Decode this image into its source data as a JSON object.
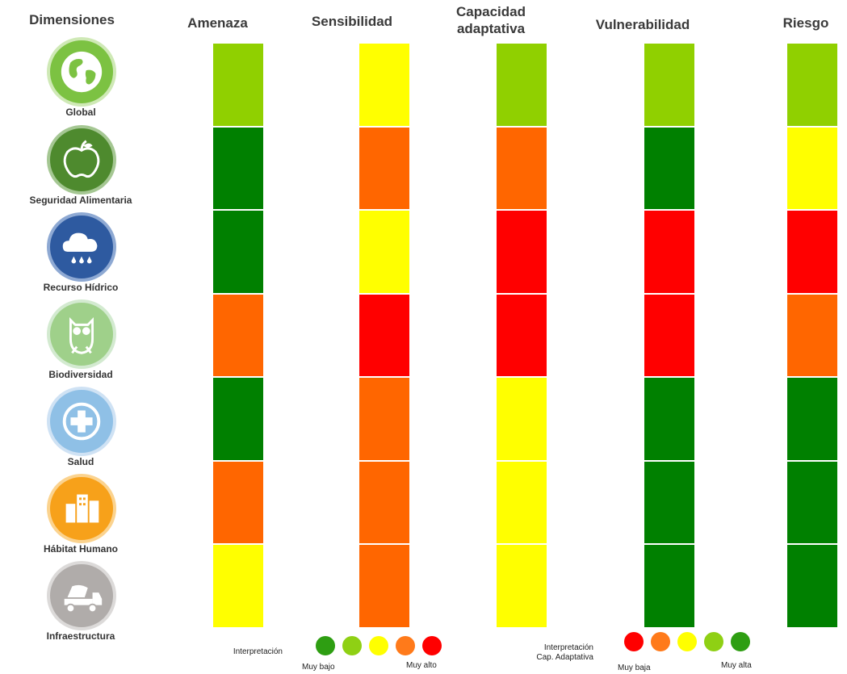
{
  "headers": {
    "dimensions": "Dimensiones",
    "amenaza": "Amenaza",
    "sensibilidad": "Sensibilidad",
    "capacidad_line1": "Capacidad",
    "capacidad_line2": "adaptativa",
    "vulnerabilidad": "Vulnerabilidad",
    "riesgo": "Riesgo"
  },
  "dimensions": [
    {
      "label": "Global",
      "icon": "globe-icon",
      "color": "#7cc242"
    },
    {
      "label": "Seguridad Alimentaria",
      "icon": "apple-icon",
      "color": "#4e8a2e"
    },
    {
      "label": "Recurso Hídrico",
      "icon": "rain-cloud-icon",
      "color": "#2e5aa0"
    },
    {
      "label": "Biodiversidad",
      "icon": "owl-icon",
      "color": "#9fd08a"
    },
    {
      "label": "Salud",
      "icon": "health-cross-icon",
      "color": "#8fc0e6"
    },
    {
      "label": "Hábitat Humano",
      "icon": "buildings-icon",
      "color": "#f7a11a"
    },
    {
      "label": "Infraestructura",
      "icon": "cement-truck-icon",
      "color": "#b0acaa"
    }
  ],
  "level_colors": {
    "muy_bajo": "#008000",
    "bajo": "#90d000",
    "medio": "#ffff00",
    "alto": "#ff6600",
    "muy_alto": "#ff0000"
  },
  "columns": {
    "amenaza": [
      "bajo",
      "muy_bajo",
      "muy_bajo",
      "alto",
      "muy_bajo",
      "alto",
      "medio"
    ],
    "sensibilidad": [
      "medio",
      "alto",
      "medio",
      "muy_alto",
      "alto",
      "alto",
      "alto"
    ],
    "capacidad_adaptativa": [
      "bajo",
      "alto",
      "muy_alto",
      "muy_alto",
      "medio",
      "medio",
      "medio"
    ],
    "vulnerabilidad": [
      "bajo",
      "muy_bajo",
      "muy_alto",
      "muy_alto",
      "muy_bajo",
      "muy_bajo",
      "muy_bajo"
    ],
    "riesgo": [
      "bajo",
      "medio",
      "muy_alto",
      "alto",
      "muy_bajo",
      "muy_bajo",
      "muy_bajo"
    ]
  },
  "legend": {
    "interpretacion": "Interpretación",
    "interpretacion_cap_line1": "Interpretación",
    "interpretacion_cap_line2": "Cap. Adaptativa",
    "muy_bajo": "Muy bajo",
    "muy_alto": "Muy alto",
    "muy_baja": "Muy baja",
    "muy_alta": "Muy alta",
    "scale1": [
      "#2e9e12",
      "#8fd014",
      "#ffff00",
      "#ff7a1a",
      "#ff0000"
    ],
    "scale2": [
      "#ff0000",
      "#ff7a1a",
      "#ffff00",
      "#8fd014",
      "#2e9e12"
    ]
  }
}
